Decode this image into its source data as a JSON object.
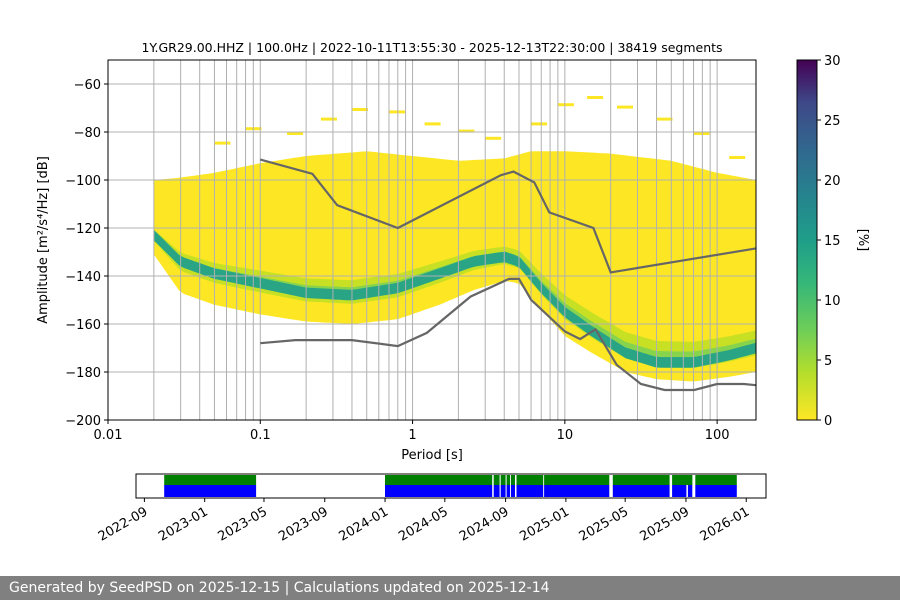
{
  "chart_data": [
    {
      "type": "heatmap",
      "title": "1Y.GR29.00.HHZ | 100.0Hz | 2022-10-11T13:55:30 - 2025-12-13T22:30:00 | 38419 segments",
      "xlabel": "Period [s]",
      "ylabel": "Amplitude [m²/s⁴/Hz] [dB]",
      "x_scale": "log",
      "xlim": [
        0.01,
        180
      ],
      "ylim": [
        -200,
        -50
      ],
      "x_ticks": [
        {
          "value": 0.01,
          "label": "0.01"
        },
        {
          "value": 0.1,
          "label": "0.1"
        },
        {
          "value": 1,
          "label": "1"
        },
        {
          "value": 10,
          "label": "10"
        },
        {
          "value": 100,
          "label": "100"
        }
      ],
      "y_ticks": [
        -200,
        -180,
        -160,
        -140,
        -120,
        -100,
        -80,
        -60
      ],
      "y_tick_labels": [
        "−200",
        "−180",
        "−160",
        "−140",
        "−120",
        "−100",
        "−80",
        "−60"
      ],
      "colorbar": {
        "label": "[%]",
        "min": 0,
        "max": 30,
        "ticks": [
          0,
          5,
          10,
          15,
          20,
          25,
          30
        ],
        "colormap": "viridis_r"
      },
      "density": {
        "mode_curve": [
          {
            "x": 0.02,
            "y": -123
          },
          {
            "x": 0.03,
            "y": -134
          },
          {
            "x": 0.05,
            "y": -139
          },
          {
            "x": 0.1,
            "y": -143
          },
          {
            "x": 0.2,
            "y": -147
          },
          {
            "x": 0.4,
            "y": -148
          },
          {
            "x": 0.8,
            "y": -145
          },
          {
            "x": 1.5,
            "y": -139
          },
          {
            "x": 2.5,
            "y": -134
          },
          {
            "x": 4,
            "y": -132
          },
          {
            "x": 5,
            "y": -134
          },
          {
            "x": 7,
            "y": -145
          },
          {
            "x": 10,
            "y": -155
          },
          {
            "x": 15,
            "y": -163
          },
          {
            "x": 25,
            "y": -172
          },
          {
            "x": 40,
            "y": -176
          },
          {
            "x": 70,
            "y": -176
          },
          {
            "x": 120,
            "y": -173
          },
          {
            "x": 180,
            "y": -170
          }
        ],
        "upper_envelope": [
          {
            "x": 0.02,
            "y": -100
          },
          {
            "x": 0.03,
            "y": -99
          },
          {
            "x": 0.05,
            "y": -97
          },
          {
            "x": 0.1,
            "y": -93
          },
          {
            "x": 0.2,
            "y": -90
          },
          {
            "x": 0.5,
            "y": -88
          },
          {
            "x": 1,
            "y": -90
          },
          {
            "x": 2,
            "y": -92
          },
          {
            "x": 4,
            "y": -91
          },
          {
            "x": 6,
            "y": -88
          },
          {
            "x": 10,
            "y": -88
          },
          {
            "x": 20,
            "y": -89
          },
          {
            "x": 50,
            "y": -92
          },
          {
            "x": 100,
            "y": -97
          },
          {
            "x": 180,
            "y": -100
          }
        ],
        "lower_envelope": [
          {
            "x": 0.02,
            "y": -131
          },
          {
            "x": 0.03,
            "y": -147
          },
          {
            "x": 0.05,
            "y": -152
          },
          {
            "x": 0.1,
            "y": -156
          },
          {
            "x": 0.2,
            "y": -159
          },
          {
            "x": 0.4,
            "y": -160
          },
          {
            "x": 0.8,
            "y": -158
          },
          {
            "x": 1.5,
            "y": -152
          },
          {
            "x": 2.5,
            "y": -146
          },
          {
            "x": 4,
            "y": -142
          },
          {
            "x": 5,
            "y": -143
          },
          {
            "x": 7,
            "y": -154
          },
          {
            "x": 10,
            "y": -165
          },
          {
            "x": 15,
            "y": -172
          },
          {
            "x": 25,
            "y": -180
          },
          {
            "x": 40,
            "y": -183
          },
          {
            "x": 70,
            "y": -184
          },
          {
            "x": 120,
            "y": -182
          },
          {
            "x": 180,
            "y": -180
          }
        ]
      },
      "series": [
        {
          "line_color": "#666666",
          "points": [
            {
              "x": 0.1,
              "y": -91.5
            },
            {
              "x": 0.22,
              "y": -97.4
            },
            {
              "x": 0.32,
              "y": -110.5
            },
            {
              "x": 0.8,
              "y": -120.0
            },
            {
              "x": 3.8,
              "y": -98.0
            },
            {
              "x": 4.6,
              "y": -96.5
            },
            {
              "x": 6.3,
              "y": -101.0
            },
            {
              "x": 7.9,
              "y": -113.5
            },
            {
              "x": 15.4,
              "y": -120.0
            },
            {
              "x": 20,
              "y": -138.5
            },
            {
              "x": 180,
              "y": -128.5
            }
          ]
        },
        {
          "line_color": "#666666",
          "points": [
            {
              "x": 0.1,
              "y": -168.0
            },
            {
              "x": 0.17,
              "y": -166.7
            },
            {
              "x": 0.4,
              "y": -166.7
            },
            {
              "x": 0.8,
              "y": -169.2
            },
            {
              "x": 1.24,
              "y": -163.7
            },
            {
              "x": 2.4,
              "y": -148.6
            },
            {
              "x": 4.3,
              "y": -141.2
            },
            {
              "x": 5.0,
              "y": -141.2
            },
            {
              "x": 6.0,
              "y": -149.9
            },
            {
              "x": 10,
              "y": -163.1
            },
            {
              "x": 12.6,
              "y": -166.3
            },
            {
              "x": 15.9,
              "y": -162.2
            },
            {
              "x": 21.9,
              "y": -177.0
            },
            {
              "x": 31.6,
              "y": -185.0
            },
            {
              "x": 45.2,
              "y": -187.5
            },
            {
              "x": 70.8,
              "y": -187.5
            },
            {
              "x": 100,
              "y": -185.0
            },
            {
              "x": 150,
              "y": -185.0
            },
            {
              "x": 180,
              "y": -185.5
            }
          ]
        }
      ]
    },
    {
      "type": "timeline",
      "tick_labels": [
        "2022-09",
        "2023-01",
        "2023-05",
        "2023-09",
        "2024-01",
        "2024-05",
        "2024-09",
        "2025-01",
        "2025-05",
        "2025-09",
        "2026-01"
      ],
      "xlim": [
        "2022-08-15",
        "2026-02-10"
      ],
      "colors": {
        "data": "#0000ff",
        "processed": "#008000"
      },
      "data_spans": [
        [
          "2022-10-11",
          "2023-04-15"
        ],
        [
          "2024-01-01",
          "2024-08-05"
        ],
        [
          "2024-08-08",
          "2024-08-20"
        ],
        [
          "2024-08-22",
          "2024-09-01"
        ],
        [
          "2024-09-03",
          "2024-09-10"
        ],
        [
          "2024-09-12",
          "2024-09-20"
        ],
        [
          "2024-09-23",
          "2024-11-16"
        ],
        [
          "2024-11-18",
          "2025-03-30"
        ],
        [
          "2025-04-06",
          "2025-07-30"
        ],
        [
          "2025-08-04",
          "2025-09-02"
        ],
        [
          "2025-09-05",
          "2025-09-14"
        ],
        [
          "2025-09-20",
          "2025-12-13"
        ]
      ],
      "processed_spans": [
        [
          "2022-10-11",
          "2023-04-15"
        ],
        [
          "2024-01-01",
          "2024-08-05"
        ],
        [
          "2024-08-08",
          "2024-08-20"
        ],
        [
          "2024-08-22",
          "2024-09-01"
        ],
        [
          "2024-09-03",
          "2024-09-10"
        ],
        [
          "2024-09-12",
          "2024-09-20"
        ],
        [
          "2024-09-23",
          "2024-11-16"
        ],
        [
          "2024-11-18",
          "2025-03-30"
        ],
        [
          "2025-04-06",
          "2025-07-30"
        ],
        [
          "2025-08-04",
          "2025-09-14"
        ],
        [
          "2025-09-20",
          "2025-12-13"
        ]
      ]
    }
  ],
  "footer": {
    "text": "Generated by SeedPSD on 2025-12-15 | Calculations updated on 2025-12-14"
  }
}
